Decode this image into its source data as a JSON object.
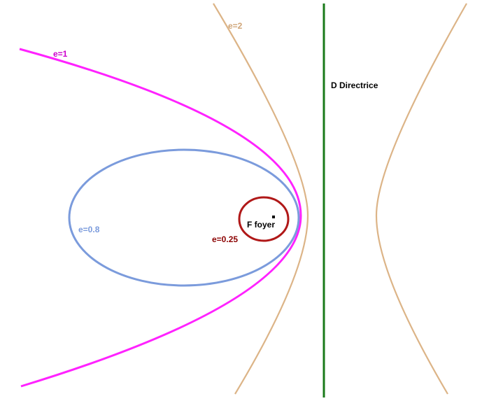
{
  "diagram": {
    "directrix": {
      "label": "D Directrice",
      "color": "#1a7a1a"
    },
    "focus": {
      "label": "F foyer",
      "color": "#000000"
    },
    "curves": [
      {
        "id": "circle",
        "label": "e=0.25",
        "color": "#b01818",
        "label_color": "#8b0000"
      },
      {
        "id": "ellipse",
        "label": "e=0.8",
        "color": "#7b9bdc",
        "label_color": "#7b9bdc"
      },
      {
        "id": "parabola",
        "label": "e=1",
        "color": "#ff22ff",
        "label_color": "#cc00cc"
      },
      {
        "id": "hyperbola",
        "label": "e=2",
        "color": "#dcb487",
        "label_color": "#cfa476"
      }
    ]
  }
}
